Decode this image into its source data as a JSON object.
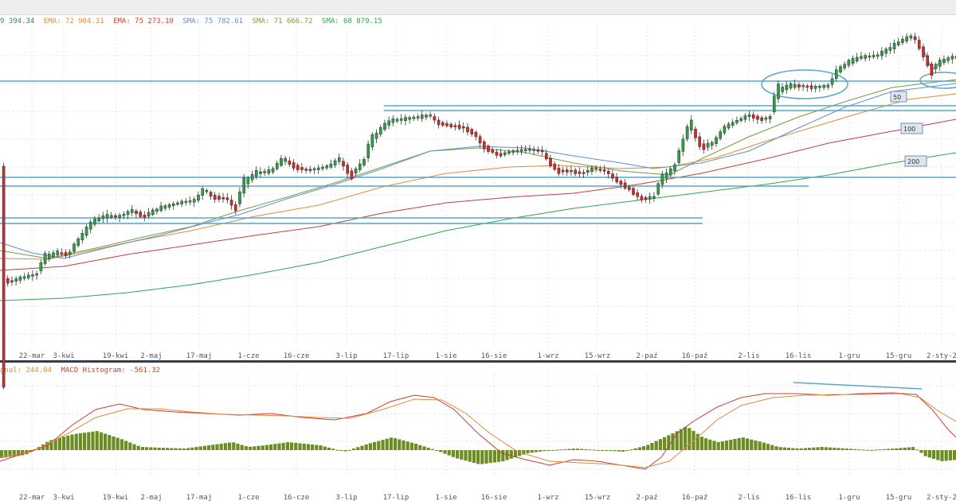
{
  "main_legend": [
    {
      "text": "9 394.34",
      "color": "#2e8b57"
    },
    {
      "text": "EMA: 72 904.31",
      "color": "#e08a3c"
    },
    {
      "text": "EMA: 75 273.10",
      "color": "#d0402b"
    },
    {
      "text": "SMA: 75 782.61",
      "color": "#5b8fd6"
    },
    {
      "text": "SMA: 71 666.72",
      "color": "#7a9a3a"
    },
    {
      "text": "SMA: 68 879.15",
      "color": "#2aa84a"
    }
  ],
  "macd_legend": [
    {
      "text": "gnal: 244.04",
      "color": "#e08a3c"
    },
    {
      "text": "MACD Histogram: -561.32",
      "color": "#d0402b"
    }
  ],
  "ma_labels": [
    "50",
    "100",
    "200"
  ],
  "x_labels": [
    "22-mar",
    "3-kwi",
    "19-kwi",
    "2-maj",
    "17-maj",
    "1-cze",
    "16-cze",
    "3-lip",
    "17-lip",
    "1-sie",
    "16-sie",
    "1-wrz",
    "15-wrz",
    "2-paź",
    "16-paź",
    "2-lis",
    "16-lis",
    "1-gru",
    "15-gru",
    "2-sty-2"
  ],
  "colors": {
    "up": "#2f9e44",
    "down": "#d42a2a",
    "ma50": "#5b8fd6",
    "ma100": "#e08a3c",
    "ma200": "#2aa84a",
    "ema_red": "#c2413a",
    "sma_olive": "#7a9a3a",
    "hline": "#5aa7c7",
    "histogram": "#6b8e23",
    "grid": "#e3e3e3",
    "separator": "#2f3e55"
  },
  "chart_data": [
    {
      "type": "candlestick",
      "x_axis": "date",
      "x_labels": [
        "22-mar",
        "3-kwi",
        "19-kwi",
        "2-maj",
        "17-maj",
        "1-cze",
        "16-cze",
        "3-lip",
        "17-lip",
        "1-sie",
        "16-sie",
        "1-wrz",
        "15-wrz",
        "2-paź",
        "16-paź",
        "2-lis",
        "16-lis",
        "1-gru",
        "15-gru",
        "2-sty-2"
      ],
      "overlays": [
        "EMA",
        "EMA",
        "SMA 50",
        "SMA 100",
        "SMA 200",
        "horizontal support/resistance lines"
      ],
      "grid": true
    },
    {
      "type": "line+bar",
      "indicator": "MACD",
      "series": [
        {
          "name": "MACD",
          "values": []
        },
        {
          "name": "Signal",
          "values": []
        },
        {
          "name": "MACD Histogram",
          "values": []
        }
      ],
      "grid": true
    }
  ]
}
